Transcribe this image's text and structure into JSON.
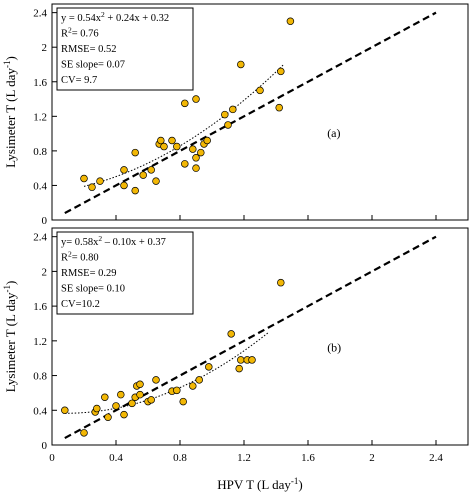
{
  "chart_data": [
    {
      "type": "scatter",
      "panel_label": "(a)",
      "ylabel": "Lysimeter T (L day",
      "ylabel_sup": "-1",
      "ylabel_end": ")",
      "xlim": [
        0,
        2.6
      ],
      "ylim": [
        0,
        2.5
      ],
      "y_ticks": [
        0,
        0.4,
        0.8,
        1.2,
        1.6,
        2,
        2.4
      ],
      "y_tick_labels": [
        "0",
        "0.4",
        "0.8",
        "1.2",
        "1.6",
        "2",
        "2.4"
      ],
      "stats": {
        "equation": "y = 0.54x",
        "equation_sup": "2",
        "equation_end": " + 0.24x + 0.32",
        "r2_pre": "R",
        "r2_sup": "2",
        "r2_end": "= 0.76",
        "rmse": "RMSE= 0.52",
        "se_slope": "SE slope= 0.07",
        "cv": "CV= 9.7"
      },
      "fit": {
        "a": 0.54,
        "b": 0.24,
        "c": 0.32,
        "x_range": [
          0.2,
          1.45
        ]
      },
      "one_to_one": {
        "x_range": [
          0.08,
          2.4
        ]
      },
      "points": [
        [
          0.2,
          0.48
        ],
        [
          0.25,
          0.38
        ],
        [
          0.3,
          0.45
        ],
        [
          0.45,
          0.4
        ],
        [
          0.45,
          0.58
        ],
        [
          0.52,
          0.34
        ],
        [
          0.52,
          0.78
        ],
        [
          0.57,
          0.52
        ],
        [
          0.62,
          0.58
        ],
        [
          0.65,
          0.45
        ],
        [
          0.67,
          0.88
        ],
        [
          0.68,
          0.92
        ],
        [
          0.7,
          0.85
        ],
        [
          0.75,
          0.92
        ],
        [
          0.78,
          0.85
        ],
        [
          0.83,
          0.65
        ],
        [
          0.83,
          1.35
        ],
        [
          0.88,
          0.82
        ],
        [
          0.9,
          1.4
        ],
        [
          0.9,
          0.6
        ],
        [
          0.9,
          0.72
        ],
        [
          0.93,
          0.78
        ],
        [
          0.95,
          0.88
        ],
        [
          0.97,
          0.92
        ],
        [
          1.08,
          1.22
        ],
        [
          1.1,
          1.1
        ],
        [
          1.13,
          1.28
        ],
        [
          1.18,
          1.8
        ],
        [
          1.3,
          1.5
        ],
        [
          1.42,
          1.3
        ],
        [
          1.43,
          1.72
        ],
        [
          1.49,
          2.3
        ]
      ]
    },
    {
      "type": "scatter",
      "panel_label": "(b)",
      "ylabel": "Lysimeter T (L day",
      "ylabel_sup": "-1",
      "ylabel_end": ")",
      "xlabel": "HPV T (L day",
      "xlabel_sup": "-1",
      "xlabel_end": ")",
      "xlim": [
        0,
        2.6
      ],
      "ylim": [
        0,
        2.5
      ],
      "x_ticks": [
        0,
        0.4,
        0.8,
        1.2,
        1.6,
        2,
        2.4
      ],
      "x_tick_labels": [
        "0",
        "0.4",
        "0.8",
        "1.2",
        "1.6",
        "2",
        "2.4"
      ],
      "y_ticks": [
        0,
        0.4,
        0.8,
        1.2,
        1.6,
        2,
        2.4
      ],
      "y_tick_labels": [
        "0",
        "0.4",
        "0.8",
        "1.2",
        "1.6",
        "2",
        "2.4"
      ],
      "stats": {
        "equation": "y= 0.58x",
        "equation_sup": "2",
        "equation_end": " – 0.10x + 0.37",
        "r2_pre": "R",
        "r2_sup": "2",
        "r2_end": "= 0.80",
        "rmse": "RMSE= 0.29",
        "se_slope": "SE slope= 0.10",
        "cv": "CV=10.2"
      },
      "fit": {
        "a": 0.58,
        "b": -0.1,
        "c": 0.37,
        "x_range": [
          0.08,
          1.35
        ]
      },
      "one_to_one": {
        "x_range": [
          0.08,
          2.4
        ]
      },
      "points": [
        [
          0.08,
          0.4
        ],
        [
          0.2,
          0.14
        ],
        [
          0.27,
          0.38
        ],
        [
          0.28,
          0.42
        ],
        [
          0.33,
          0.55
        ],
        [
          0.35,
          0.32
        ],
        [
          0.4,
          0.45
        ],
        [
          0.43,
          0.58
        ],
        [
          0.45,
          0.35
        ],
        [
          0.5,
          0.48
        ],
        [
          0.52,
          0.55
        ],
        [
          0.53,
          0.68
        ],
        [
          0.55,
          0.58
        ],
        [
          0.55,
          0.7
        ],
        [
          0.6,
          0.5
        ],
        [
          0.62,
          0.52
        ],
        [
          0.65,
          0.75
        ],
        [
          0.75,
          0.62
        ],
        [
          0.78,
          0.63
        ],
        [
          0.82,
          0.5
        ],
        [
          0.88,
          0.68
        ],
        [
          0.92,
          0.75
        ],
        [
          0.98,
          0.9
        ],
        [
          1.12,
          1.28
        ],
        [
          1.17,
          0.88
        ],
        [
          1.18,
          0.98
        ],
        [
          1.22,
          0.98
        ],
        [
          1.25,
          0.98
        ],
        [
          1.43,
          1.87
        ]
      ]
    }
  ]
}
